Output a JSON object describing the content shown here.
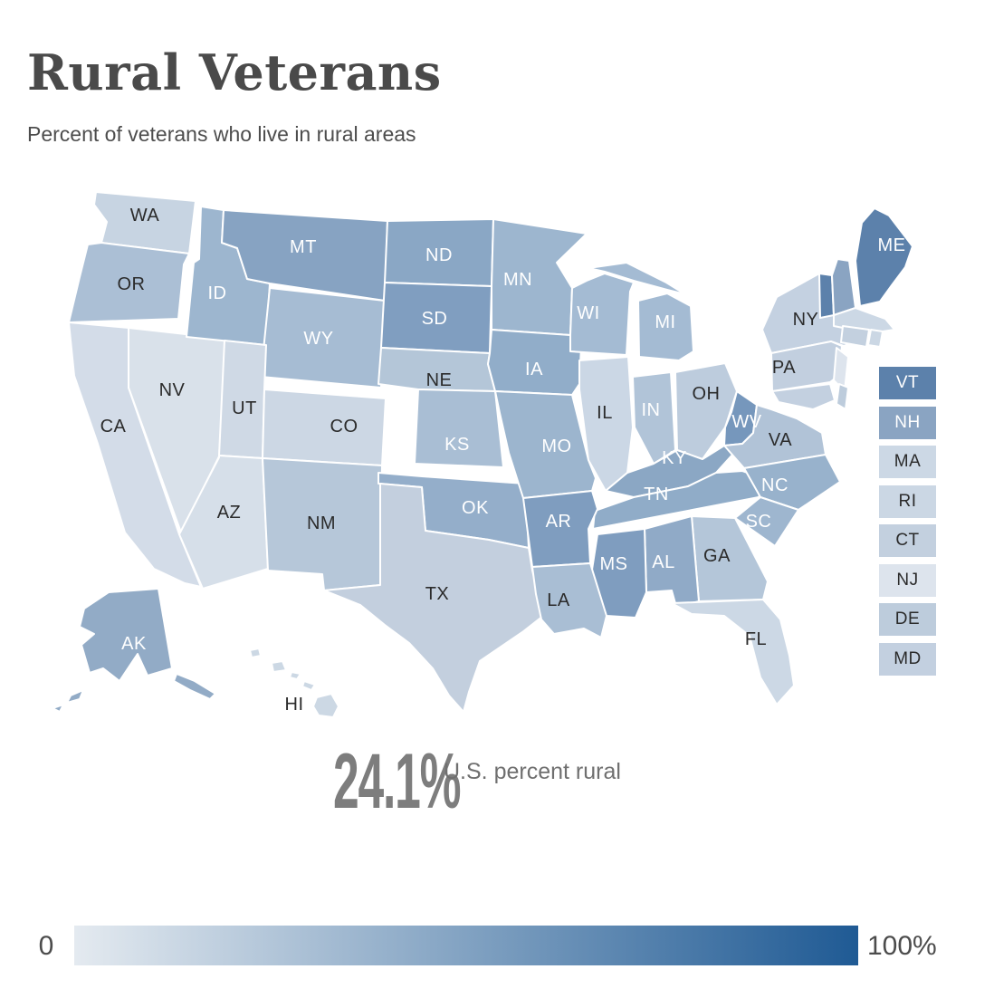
{
  "page": {
    "title": "Rural Veterans",
    "subtitle": "Percent of veterans who live in rural areas"
  },
  "stat": {
    "value": "24.1%",
    "label": "U.S. percent rural"
  },
  "scale_legend": {
    "min_label": "0",
    "max_label": "100%",
    "gradient_start": "#e4eaf0",
    "gradient_end": "#1f5a94"
  },
  "colors": {
    "state_border": "#ffffff",
    "label_dark": "#2b2b2b",
    "label_light": "#ffffff"
  },
  "side_legend": [
    {
      "abbr": "VT",
      "fill": "#5c81ab",
      "label_color": "#ffffff"
    },
    {
      "abbr": "NH",
      "fill": "#8aa4c2",
      "label_color": "#ffffff"
    },
    {
      "abbr": "MA",
      "fill": "#ccd8e5",
      "label_color": "#2b2b2b"
    },
    {
      "abbr": "RI",
      "fill": "#cbd7e4",
      "label_color": "#2b2b2b"
    },
    {
      "abbr": "CT",
      "fill": "#c3d0df",
      "label_color": "#2b2b2b"
    },
    {
      "abbr": "NJ",
      "fill": "#dde4ed",
      "label_color": "#2b2b2b"
    },
    {
      "abbr": "DE",
      "fill": "#bdccdc",
      "label_color": "#2b2b2b"
    },
    {
      "abbr": "MD",
      "fill": "#c3d0e0",
      "label_color": "#2b2b2b"
    }
  ],
  "map": {
    "states": [
      {
        "abbr": "WA",
        "label": "WA",
        "fill": "#c7d4e2",
        "label_color": "#2b2b2b"
      },
      {
        "abbr": "OR",
        "label": "OR",
        "fill": "#abbfd5",
        "label_color": "#2b2b2b"
      },
      {
        "abbr": "CA",
        "label": "CA",
        "fill": "#d3dce8",
        "label_color": "#2b2b2b"
      },
      {
        "abbr": "NV",
        "label": "NV",
        "fill": "#d9e1ea",
        "label_color": "#2b2b2b"
      },
      {
        "abbr": "ID",
        "label": "ID",
        "fill": "#9db6cf",
        "label_color": "#ffffff"
      },
      {
        "abbr": "MT",
        "label": "MT",
        "fill": "#87a3c2",
        "label_color": "#ffffff"
      },
      {
        "abbr": "WY",
        "label": "WY",
        "fill": "#a6bcd3",
        "label_color": "#ffffff"
      },
      {
        "abbr": "UT",
        "label": "UT",
        "fill": "#cfd9e5",
        "label_color": "#2b2b2b"
      },
      {
        "abbr": "CO",
        "label": "CO",
        "fill": "#ccd7e4",
        "label_color": "#2b2b2b"
      },
      {
        "abbr": "AZ",
        "label": "AZ",
        "fill": "#d6dfe9",
        "label_color": "#2b2b2b"
      },
      {
        "abbr": "NM",
        "label": "NM",
        "fill": "#b6c7d9",
        "label_color": "#2b2b2b"
      },
      {
        "abbr": "ND",
        "label": "ND",
        "fill": "#8aa7c5",
        "label_color": "#ffffff"
      },
      {
        "abbr": "SD",
        "label": "SD",
        "fill": "#809ec0",
        "label_color": "#ffffff"
      },
      {
        "abbr": "NE",
        "label": "NE",
        "fill": "#b4c6d8",
        "label_color": "#2b2b2b"
      },
      {
        "abbr": "KS",
        "label": "KS",
        "fill": "#a9bed4",
        "label_color": "#ffffff"
      },
      {
        "abbr": "OK",
        "label": "OK",
        "fill": "#94aeca",
        "label_color": "#ffffff"
      },
      {
        "abbr": "TX",
        "label": "TX",
        "fill": "#c3cfde",
        "label_color": "#2b2b2b"
      },
      {
        "abbr": "MN",
        "label": "MN",
        "fill": "#9db6cf",
        "label_color": "#ffffff"
      },
      {
        "abbr": "IA",
        "label": "IA",
        "fill": "#91adc9",
        "label_color": "#ffffff"
      },
      {
        "abbr": "MO",
        "label": "MO",
        "fill": "#9cb5ce",
        "label_color": "#ffffff"
      },
      {
        "abbr": "WI",
        "label": "WI",
        "fill": "#a4bbd3",
        "label_color": "#ffffff"
      },
      {
        "abbr": "IL",
        "label": "IL",
        "fill": "#cbd7e5",
        "label_color": "#2b2b2b"
      },
      {
        "abbr": "IN",
        "label": "IN",
        "fill": "#b1c4d8",
        "label_color": "#ffffff"
      },
      {
        "abbr": "MI",
        "label": "MI",
        "fill": "#a4bbd3",
        "label_color": "#ffffff"
      },
      {
        "abbr": "OH",
        "label": "OH",
        "fill": "#bdccdd",
        "label_color": "#2b2b2b"
      },
      {
        "abbr": "KY",
        "label": "KY",
        "fill": "#8ba7c4",
        "label_color": "#ffffff"
      },
      {
        "abbr": "TN",
        "label": "TN",
        "fill": "#90acc8",
        "label_color": "#ffffff"
      },
      {
        "abbr": "WV",
        "label": "WV",
        "fill": "#7697bc",
        "label_color": "#ffffff"
      },
      {
        "abbr": "VA",
        "label": "VA",
        "fill": "#b1c3d7",
        "label_color": "#2b2b2b"
      },
      {
        "abbr": "NC",
        "label": "NC",
        "fill": "#98b2cc",
        "label_color": "#ffffff"
      },
      {
        "abbr": "SC",
        "label": "SC",
        "fill": "#9eb6cf",
        "label_color": "#ffffff"
      },
      {
        "abbr": "GA",
        "label": "GA",
        "fill": "#b4c6d9",
        "label_color": "#2b2b2b"
      },
      {
        "abbr": "AL",
        "label": "AL",
        "fill": "#90aac7",
        "label_color": "#ffffff"
      },
      {
        "abbr": "MS",
        "label": "MS",
        "fill": "#7f9dbf",
        "label_color": "#ffffff"
      },
      {
        "abbr": "AR",
        "label": "AR",
        "fill": "#7f9dbf",
        "label_color": "#ffffff"
      },
      {
        "abbr": "LA",
        "label": "LA",
        "fill": "#a9bed4",
        "label_color": "#2b2b2b"
      },
      {
        "abbr": "FL",
        "label": "FL",
        "fill": "#ccd8e5",
        "label_color": "#2b2b2b"
      },
      {
        "abbr": "NY",
        "label": "NY",
        "fill": "#c4d1e1",
        "label_color": "#2b2b2b"
      },
      {
        "abbr": "PA",
        "label": "PA",
        "fill": "#c2cfdf",
        "label_color": "#2b2b2b"
      },
      {
        "abbr": "NJ",
        "label": "",
        "fill": "#dde4ed",
        "label_color": "#2b2b2b"
      },
      {
        "abbr": "DE",
        "label": "",
        "fill": "#bdccdc",
        "label_color": "#2b2b2b"
      },
      {
        "abbr": "MD",
        "label": "",
        "fill": "#c3d0e0",
        "label_color": "#2b2b2b"
      },
      {
        "abbr": "VT",
        "label": "",
        "fill": "#5c81ab",
        "label_color": "#ffffff"
      },
      {
        "abbr": "NH",
        "label": "",
        "fill": "#8aa4c2",
        "label_color": "#ffffff"
      },
      {
        "abbr": "ME",
        "label": "ME",
        "fill": "#5c81ab",
        "label_color": "#ffffff"
      },
      {
        "abbr": "MA",
        "label": "",
        "fill": "#ccd8e5",
        "label_color": "#2b2b2b"
      },
      {
        "abbr": "CT",
        "label": "",
        "fill": "#c3d0df",
        "label_color": "#2b2b2b"
      },
      {
        "abbr": "RI",
        "label": "",
        "fill": "#cbd7e4",
        "label_color": "#2b2b2b"
      },
      {
        "abbr": "AK",
        "label": "AK",
        "fill": "#92abc6",
        "label_color": "#ffffff"
      },
      {
        "abbr": "HI",
        "label": "HI",
        "fill": "#ccd8e4",
        "label_color": "#2b2b2b"
      }
    ]
  }
}
